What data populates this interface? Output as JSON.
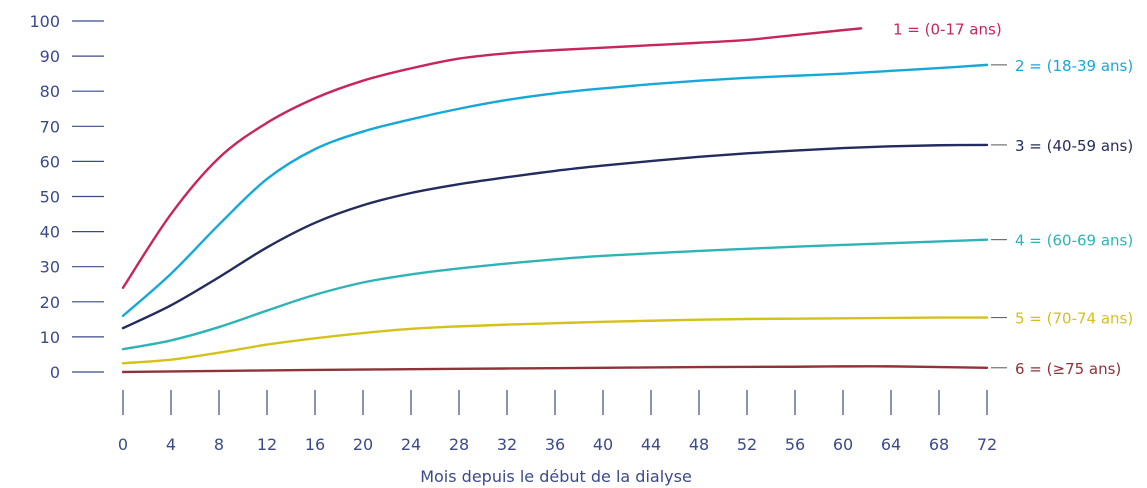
{
  "chart_data": {
    "type": "line",
    "title": "",
    "xlabel": "Mois depuis le début de la dialyse",
    "ylabel": "",
    "xlim": [
      0,
      72
    ],
    "ylim": [
      0,
      100
    ],
    "x_ticks": [
      "0",
      "4",
      "8",
      "12",
      "16",
      "20",
      "24",
      "28",
      "32",
      "36",
      "40",
      "44",
      "48",
      "52",
      "56",
      "60",
      "64",
      "68",
      "72"
    ],
    "y_ticks": [
      "0",
      "10",
      "20",
      "30",
      "40",
      "50",
      "60",
      "70",
      "80",
      "90",
      "100"
    ],
    "grid": false,
    "legend": "inline-right",
    "series": [
      {
        "name": "1 = (0-17 ans)",
        "color": "#c8245e",
        "x": [
          0,
          4,
          8,
          12,
          16,
          20,
          24,
          28,
          32,
          36,
          40,
          44,
          48,
          52,
          56,
          60,
          61.5
        ],
        "y": [
          24,
          45,
          61,
          71,
          78,
          83,
          86.5,
          89.3,
          90.8,
          91.7,
          92.4,
          93.1,
          93.8,
          94.6,
          96,
          97.4,
          97.9
        ]
      },
      {
        "name": "2 = (18-39 ans)",
        "color": "#15a8d8",
        "x": [
          0,
          4,
          8,
          12,
          16,
          20,
          24,
          28,
          32,
          36,
          40,
          44,
          48,
          52,
          56,
          60,
          64,
          68,
          72
        ],
        "y": [
          16,
          28,
          42,
          55,
          63.5,
          68.5,
          72,
          75,
          77.5,
          79.4,
          80.8,
          82,
          83,
          83.8,
          84.4,
          85,
          85.8,
          86.6,
          87.5
        ]
      },
      {
        "name": "3 = (40-59 ans)",
        "color": "#242b5e",
        "x": [
          0,
          4,
          8,
          12,
          16,
          20,
          24,
          28,
          32,
          36,
          40,
          44,
          48,
          52,
          56,
          60,
          64,
          68,
          72
        ],
        "y": [
          12.5,
          19,
          27,
          35.5,
          42.5,
          47.5,
          51,
          53.5,
          55.5,
          57.3,
          58.8,
          60.1,
          61.3,
          62.3,
          63.1,
          63.8,
          64.3,
          64.6,
          64.7
        ]
      },
      {
        "name": "4 = (60-69 ans)",
        "color": "#2fb3b6",
        "x": [
          0,
          4,
          8,
          12,
          16,
          20,
          24,
          28,
          32,
          36,
          40,
          44,
          48,
          52,
          56,
          60,
          64,
          68,
          72
        ],
        "y": [
          6.5,
          9,
          12.8,
          17.5,
          22,
          25.5,
          27.8,
          29.5,
          30.9,
          32.1,
          33.1,
          33.8,
          34.5,
          35.1,
          35.7,
          36.2,
          36.7,
          37.2,
          37.7
        ]
      },
      {
        "name": "5 = (70-74 ans)",
        "color": "#d4c21a",
        "x": [
          0,
          4,
          8,
          12,
          16,
          20,
          24,
          28,
          32,
          36,
          40,
          44,
          48,
          52,
          56,
          60,
          64,
          68,
          72
        ],
        "y": [
          2.5,
          3.5,
          5.5,
          7.8,
          9.6,
          11.1,
          12.3,
          13,
          13.5,
          13.9,
          14.3,
          14.6,
          14.9,
          15.1,
          15.2,
          15.3,
          15.4,
          15.5,
          15.5
        ]
      },
      {
        "name": "6 = (≥75 ans)",
        "color": "#8f3338",
        "x": [
          0,
          8,
          16,
          24,
          32,
          40,
          48,
          56,
          60,
          64,
          68,
          72
        ],
        "y": [
          0,
          0.3,
          0.6,
          0.8,
          1,
          1.2,
          1.4,
          1.5,
          1.6,
          1.6,
          1.4,
          1.2
        ]
      }
    ]
  }
}
